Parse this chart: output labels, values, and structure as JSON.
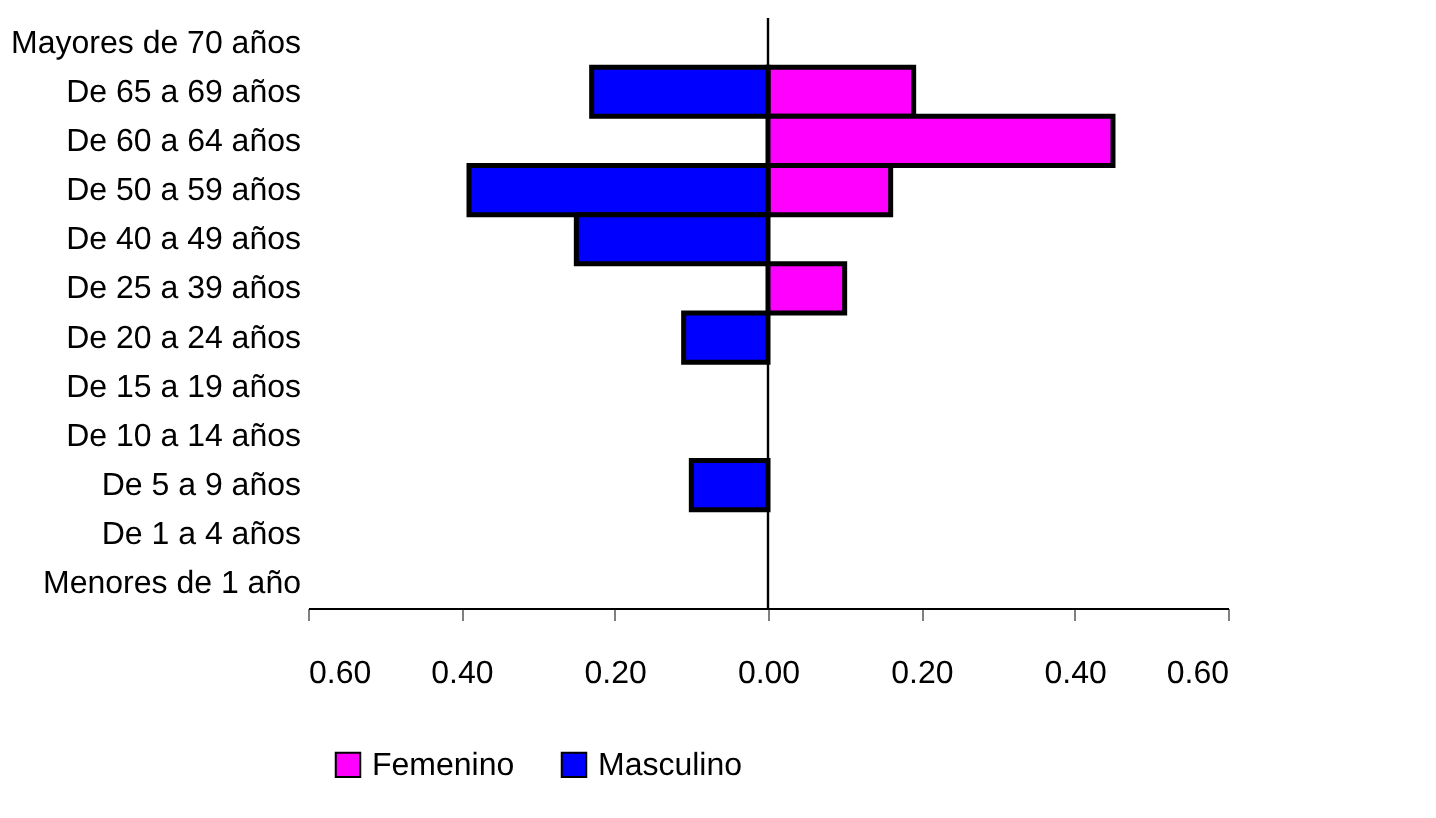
{
  "chart_data": {
    "type": "bar",
    "orientation": "horizontal",
    "categories": [
      "Mayores de 70 años",
      "De 65 a 69 años",
      "De 60 a 64 años",
      "De 50 a 59 años",
      "De 40 a 49 años",
      "De 25 a 39 años",
      "De 20 a 24 años",
      "De 15 a 19 años",
      "De 10 a 14 años",
      "De 5 a 9 años",
      "De 1 a 4 años",
      "Menores de 1 año"
    ],
    "series": [
      {
        "name": "Femenino",
        "color": "#ff00ff",
        "values": [
          null,
          0.19,
          0.45,
          0.16,
          null,
          0.1,
          null,
          null,
          null,
          null,
          null,
          null
        ]
      },
      {
        "name": "Masculino",
        "color": "#0000ff",
        "values": [
          null,
          -0.23,
          null,
          -0.39,
          -0.25,
          null,
          -0.11,
          null,
          null,
          -0.1,
          null,
          null
        ]
      }
    ],
    "xlim": [
      -0.6,
      0.6
    ],
    "xticks": [
      {
        "value": -0.6,
        "label": "0.60"
      },
      {
        "value": -0.4,
        "label": "0.40"
      },
      {
        "value": -0.2,
        "label": "0.20"
      },
      {
        "value": 0,
        "label": "0.00"
      },
      {
        "value": 0.2,
        "label": "0.20"
      },
      {
        "value": 0.4,
        "label": "0.40"
      },
      {
        "value": 0.6,
        "label": "0.60"
      }
    ],
    "ref_lines": [
      {
        "axis": "x",
        "value": 0,
        "color": "#000000"
      }
    ],
    "grid": false,
    "legend": "bottom"
  }
}
